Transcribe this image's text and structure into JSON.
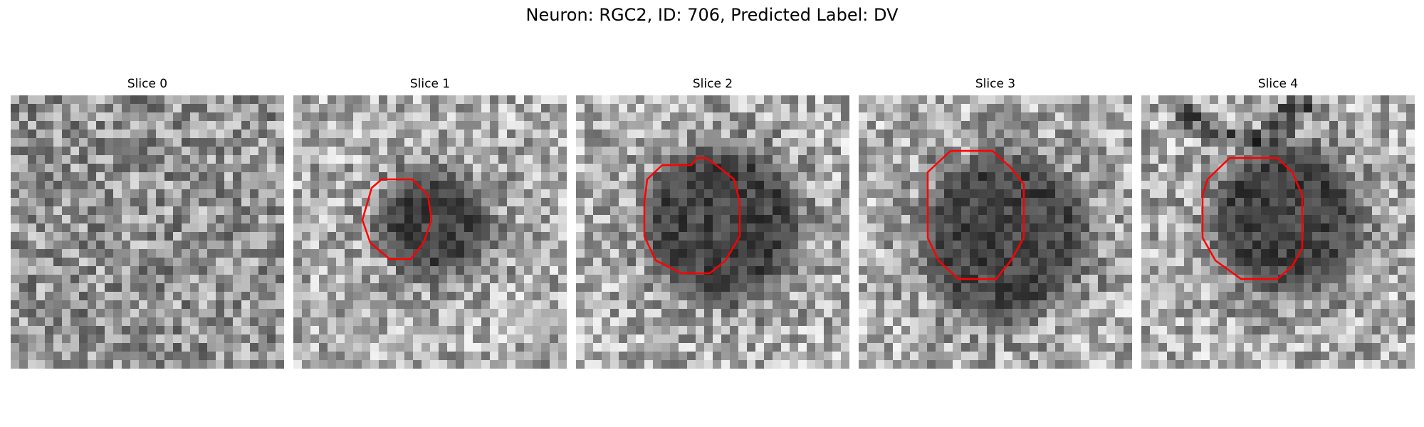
{
  "figure": {
    "title": "Neuron: RGC2, ID: 706, Predicted Label: DV",
    "panels": [
      {
        "title": "Slice 0",
        "contour": false
      },
      {
        "title": "Slice 1",
        "contour": true
      },
      {
        "title": "Slice 2",
        "contour": true
      },
      {
        "title": "Slice 3",
        "contour": true
      },
      {
        "title": "Slice 4",
        "contour": true
      }
    ],
    "colormap": "gray",
    "contour_color": "#ff0000"
  }
}
